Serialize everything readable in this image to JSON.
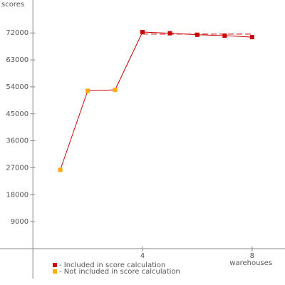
{
  "chart_data": {
    "type": "line",
    "y_label": "scores",
    "x_label": "warehouses",
    "x": [
      1,
      2,
      3,
      4,
      5,
      6,
      7,
      8
    ],
    "series": [
      {
        "name": "- Included in score calculation",
        "color": "#cc0000",
        "values": [
          null,
          null,
          null,
          72300,
          71900,
          71400,
          71100,
          70600
        ]
      },
      {
        "name": "- Not included in score calculation",
        "color": "#ffaa00",
        "values": [
          26300,
          52700,
          53000,
          null,
          null,
          null,
          null,
          null
        ]
      }
    ],
    "line_color": "#cc0000",
    "score_line": {
      "value": 71600,
      "from": 4,
      "to": 8
    },
    "xlim": [
      -1.2,
      9.2
    ],
    "ylim": [
      -10000,
      83000
    ],
    "xticks": [
      4,
      8
    ],
    "yticks": [
      9000,
      18000,
      27000,
      36000,
      45000,
      54000,
      63000,
      72000
    ]
  }
}
